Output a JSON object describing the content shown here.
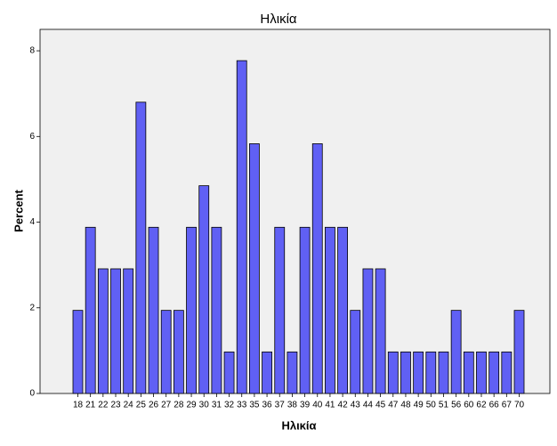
{
  "chart_data": {
    "type": "bar",
    "title": "Ηλικία",
    "x_label": "Ηλικία",
    "y_label": "Percent",
    "categories": [
      18,
      21,
      22,
      23,
      24,
      25,
      26,
      27,
      28,
      29,
      30,
      31,
      32,
      33,
      35,
      36,
      37,
      38,
      39,
      40,
      41,
      42,
      43,
      44,
      45,
      47,
      48,
      49,
      50,
      51,
      56,
      60,
      62,
      66,
      67,
      70
    ],
    "values": [
      1.94,
      3.88,
      2.91,
      2.91,
      2.91,
      6.8,
      3.88,
      1.94,
      1.94,
      3.88,
      4.85,
      3.88,
      0.97,
      7.77,
      5.83,
      0.97,
      3.88,
      0.97,
      3.88,
      5.83,
      3.88,
      3.88,
      1.94,
      2.91,
      2.91,
      0.97,
      0.97,
      0.97,
      0.97,
      0.97,
      1.94,
      0.97,
      0.97,
      0.97,
      0.97,
      1.94
    ],
    "color": "#6060f4",
    "ylim": [
      0,
      8.5
    ],
    "yticks": [
      0,
      2,
      4,
      6,
      8
    ],
    "grid": false
  }
}
